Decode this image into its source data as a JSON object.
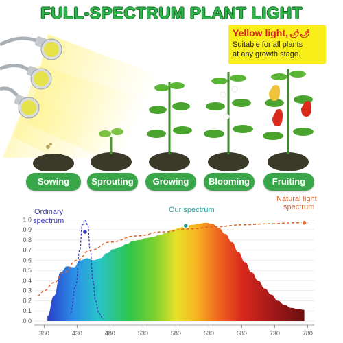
{
  "title": "FULL-SPECTRUM PLANT LIGHT",
  "note": {
    "head": "Yellow light,",
    "icon": "chili-pepper-icon",
    "body_line1": "Suitable for all plants",
    "body_line2": "at any growth stage."
  },
  "stages": [
    "Sowing",
    "Sprouting",
    "Growing",
    "Blooming",
    "Fruiting"
  ],
  "colors": {
    "green": "#3aa64a",
    "title_green": "#2fb34a",
    "note_yellow": "#f8ee19",
    "ordinary": "#3a3ab8",
    "natural": "#e0632b",
    "our": "#2aa3a0"
  },
  "chart_data": {
    "type": "area",
    "x_ticks": [
      380,
      430,
      480,
      530,
      580,
      630,
      680,
      730,
      780
    ],
    "y_ticks": [
      0.0,
      0.1,
      0.2,
      0.3,
      0.4,
      0.5,
      0.6,
      0.7,
      0.8,
      0.9,
      1.0
    ],
    "xlim": [
      365,
      790
    ],
    "ylim": [
      0,
      1.05
    ],
    "series": [
      {
        "name": "Our spectrum",
        "style": "filled-rainbow",
        "x": [
          385,
          395,
          405,
          415,
          425,
          435,
          445,
          455,
          465,
          475,
          485,
          495,
          505,
          515,
          525,
          535,
          545,
          555,
          565,
          575,
          585,
          595,
          605,
          615,
          625,
          635,
          645,
          655,
          665,
          675,
          685,
          695,
          705,
          715,
          725,
          735,
          745,
          755,
          765,
          775
        ],
        "y": [
          0.05,
          0.25,
          0.48,
          0.54,
          0.53,
          0.6,
          0.62,
          0.6,
          0.62,
          0.67,
          0.71,
          0.73,
          0.76,
          0.79,
          0.8,
          0.82,
          0.83,
          0.85,
          0.87,
          0.9,
          0.92,
          0.94,
          0.95,
          0.96,
          0.97,
          0.96,
          0.92,
          0.86,
          0.78,
          0.68,
          0.58,
          0.48,
          0.4,
          0.32,
          0.26,
          0.2,
          0.16,
          0.13,
          0.12,
          0.11
        ]
      },
      {
        "name": "Ordinary spectrum",
        "style": "dashed",
        "x": [
          420,
          428,
          434,
          438,
          442,
          446,
          450,
          454,
          458,
          463,
          470
        ],
        "y": [
          0.08,
          0.35,
          0.7,
          0.95,
          1.0,
          0.95,
          0.7,
          0.4,
          0.2,
          0.08,
          0.02
        ]
      },
      {
        "name": "Natural light spectrum",
        "style": "dashed",
        "x": [
          370,
          380,
          395,
          410,
          430,
          450,
          480,
          520,
          560,
          600,
          640,
          680,
          720,
          760,
          780
        ],
        "y": [
          0.25,
          0.3,
          0.38,
          0.48,
          0.6,
          0.7,
          0.78,
          0.84,
          0.88,
          0.91,
          0.93,
          0.95,
          0.96,
          0.97,
          0.97
        ]
      }
    ],
    "labels": {
      "ordinary": [
        "Ordinary",
        "spectrum"
      ],
      "our": "Our spectrum",
      "natural": [
        "Natural light",
        "spectrum"
      ]
    }
  }
}
